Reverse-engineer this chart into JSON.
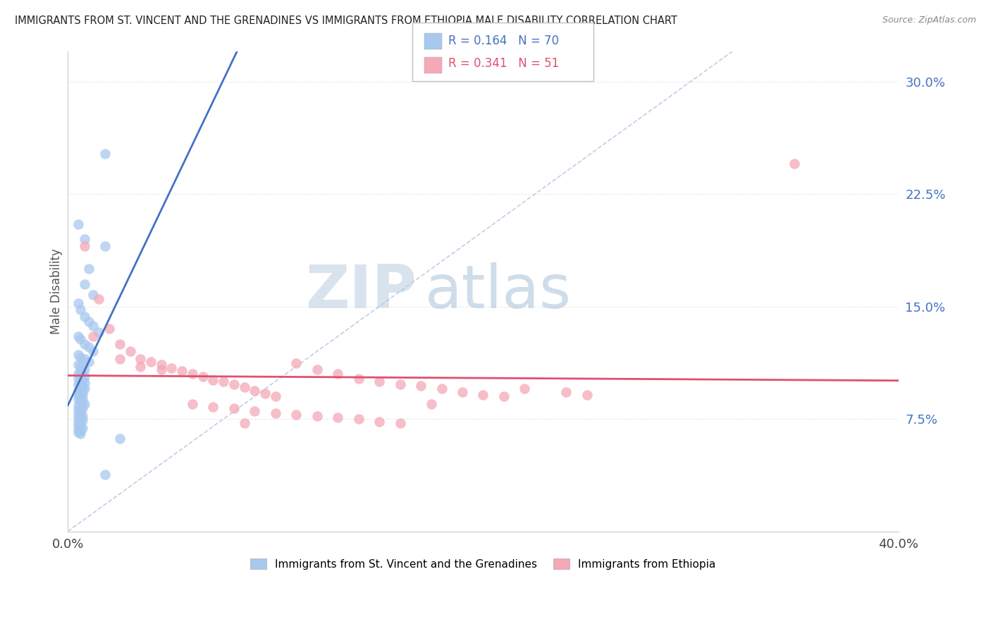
{
  "title": "IMMIGRANTS FROM ST. VINCENT AND THE GRENADINES VS IMMIGRANTS FROM ETHIOPIA MALE DISABILITY CORRELATION CHART",
  "source": "Source: ZipAtlas.com",
  "ylabel": "Male Disability",
  "ytick_labels": [
    "7.5%",
    "15.0%",
    "22.5%",
    "30.0%"
  ],
  "ytick_values": [
    0.075,
    0.15,
    0.225,
    0.3
  ],
  "xlim": [
    0.0,
    0.4
  ],
  "ylim": [
    0.0,
    0.32
  ],
  "legend1_label": "Immigrants from St. Vincent and the Grenadines",
  "legend2_label": "Immigrants from Ethiopia",
  "R1": 0.164,
  "N1": 70,
  "R2": 0.341,
  "N2": 51,
  "color1": "#a8c8f0",
  "color2": "#f4a8b8",
  "trendline1_color": "#4472c4",
  "trendline2_color": "#e05070",
  "watermark_zip": "ZIP",
  "watermark_atlas": "atlas",
  "watermark_zip_color": "#c8d8e8",
  "watermark_atlas_color": "#a8c0d8",
  "background_color": "#ffffff",
  "grid_color": "#d8d8d8",
  "title_color": "#222222",
  "axis_label_color": "#555555",
  "ytick_color": "#4472c4",
  "scatter1_x": [
    0.018,
    0.018,
    0.005,
    0.008,
    0.01,
    0.008,
    0.012,
    0.005,
    0.006,
    0.008,
    0.01,
    0.012,
    0.015,
    0.005,
    0.006,
    0.008,
    0.01,
    0.012,
    0.005,
    0.006,
    0.008,
    0.01,
    0.005,
    0.006,
    0.008,
    0.006,
    0.007,
    0.005,
    0.006,
    0.008,
    0.005,
    0.007,
    0.006,
    0.008,
    0.005,
    0.006,
    0.007,
    0.008,
    0.005,
    0.006,
    0.007,
    0.005,
    0.006,
    0.007,
    0.005,
    0.006,
    0.007,
    0.008,
    0.005,
    0.006,
    0.007,
    0.005,
    0.006,
    0.005,
    0.006,
    0.007,
    0.005,
    0.006,
    0.007,
    0.005,
    0.006,
    0.005,
    0.006,
    0.007,
    0.005,
    0.006,
    0.005,
    0.006,
    0.025,
    0.018
  ],
  "scatter1_y": [
    0.252,
    0.19,
    0.205,
    0.195,
    0.175,
    0.165,
    0.158,
    0.152,
    0.148,
    0.143,
    0.14,
    0.137,
    0.133,
    0.13,
    0.128,
    0.125,
    0.123,
    0.12,
    0.118,
    0.116,
    0.115,
    0.113,
    0.111,
    0.11,
    0.108,
    0.107,
    0.106,
    0.105,
    0.104,
    0.103,
    0.102,
    0.101,
    0.1,
    0.099,
    0.098,
    0.097,
    0.096,
    0.095,
    0.094,
    0.093,
    0.092,
    0.091,
    0.09,
    0.089,
    0.088,
    0.087,
    0.086,
    0.085,
    0.084,
    0.083,
    0.082,
    0.081,
    0.08,
    0.079,
    0.078,
    0.077,
    0.076,
    0.075,
    0.074,
    0.073,
    0.072,
    0.071,
    0.07,
    0.069,
    0.068,
    0.067,
    0.066,
    0.065,
    0.062,
    0.038
  ],
  "scatter2_x": [
    0.008,
    0.012,
    0.015,
    0.02,
    0.025,
    0.03,
    0.035,
    0.04,
    0.045,
    0.05,
    0.055,
    0.06,
    0.065,
    0.07,
    0.075,
    0.08,
    0.085,
    0.09,
    0.095,
    0.1,
    0.11,
    0.12,
    0.13,
    0.14,
    0.15,
    0.16,
    0.17,
    0.18,
    0.19,
    0.2,
    0.21,
    0.22,
    0.24,
    0.25,
    0.025,
    0.035,
    0.045,
    0.06,
    0.07,
    0.08,
    0.09,
    0.1,
    0.11,
    0.12,
    0.13,
    0.14,
    0.15,
    0.16,
    0.35,
    0.175,
    0.085
  ],
  "scatter2_y": [
    0.19,
    0.13,
    0.155,
    0.135,
    0.125,
    0.12,
    0.115,
    0.113,
    0.111,
    0.109,
    0.107,
    0.105,
    0.103,
    0.101,
    0.1,
    0.098,
    0.096,
    0.094,
    0.092,
    0.09,
    0.112,
    0.108,
    0.105,
    0.102,
    0.1,
    0.098,
    0.097,
    0.095,
    0.093,
    0.091,
    0.09,
    0.095,
    0.093,
    0.091,
    0.115,
    0.11,
    0.108,
    0.085,
    0.083,
    0.082,
    0.08,
    0.079,
    0.078,
    0.077,
    0.076,
    0.075,
    0.073,
    0.072,
    0.245,
    0.085,
    0.072
  ]
}
